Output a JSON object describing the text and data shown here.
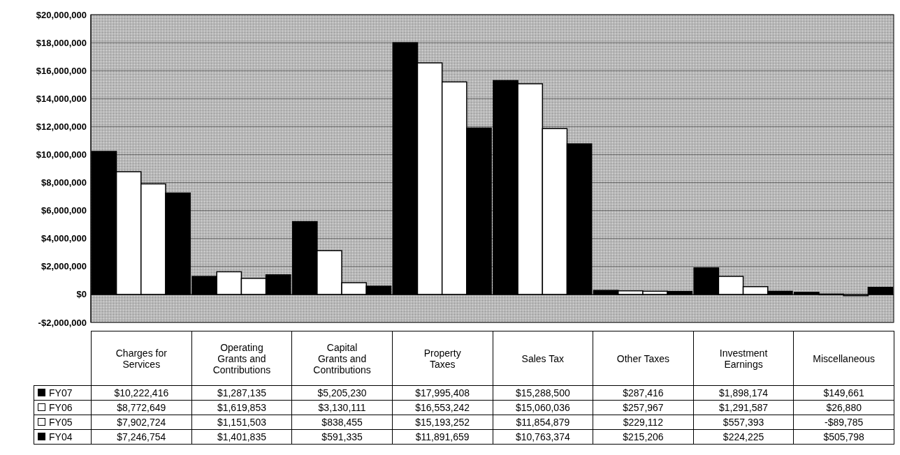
{
  "chart_data": {
    "type": "bar",
    "categories": [
      "Charges for Services",
      "Operating Grants and Contributions",
      "Capital Grants and Contributions",
      "Property Taxes",
      "Sales Tax",
      "Other Taxes",
      "Investment Earnings",
      "Miscellaneous"
    ],
    "series": [
      {
        "name": "FY07",
        "color": "#000000",
        "values": [
          10222416,
          1287135,
          5205230,
          17995408,
          15288500,
          287416,
          1898174,
          149661
        ],
        "value_labels": [
          "$10,222,416",
          "$1,287,135",
          "$5,205,230",
          "$17,995,408",
          "$15,288,500",
          "$287,416",
          "$1,898,174",
          "$149,661"
        ]
      },
      {
        "name": "FY06",
        "color": "#ffffff",
        "values": [
          8772649,
          1619853,
          3130111,
          16553242,
          15060036,
          257967,
          1291587,
          26880
        ],
        "value_labels": [
          "$8,772,649",
          "$1,619,853",
          "$3,130,111",
          "$16,553,242",
          "$15,060,036",
          "$257,967",
          "$1,291,587",
          "$26,880"
        ]
      },
      {
        "name": "FY05",
        "color": "#ffffff",
        "values": [
          7902724,
          1151503,
          838455,
          15193252,
          11854879,
          229112,
          557393,
          -89785
        ],
        "value_labels": [
          "$7,902,724",
          "$1,151,503",
          "$838,455",
          "$15,193,252",
          "$11,854,879",
          "$229,112",
          "$557,393",
          "-$89,785"
        ]
      },
      {
        "name": "FY04",
        "color": "#000000",
        "values": [
          7246754,
          1401835,
          591335,
          11891659,
          10763374,
          215206,
          224225,
          505798
        ],
        "value_labels": [
          "$7,246,754",
          "$1,401,835",
          "$591,335",
          "$11,891,659",
          "$10,763,374",
          "$215,206",
          "$224,225",
          "$505,798"
        ]
      }
    ],
    "ylim": [
      -2000000,
      20000000
    ],
    "yticks": [
      {
        "value": -2000000,
        "label": "-$2,000,000"
      },
      {
        "value": 0,
        "label": "$0"
      },
      {
        "value": 2000000,
        "label": "$2,000,000"
      },
      {
        "value": 4000000,
        "label": "$4,000,000"
      },
      {
        "value": 6000000,
        "label": "$6,000,000"
      },
      {
        "value": 8000000,
        "label": "$8,000,000"
      },
      {
        "value": 10000000,
        "label": "$10,000,000"
      },
      {
        "value": 12000000,
        "label": "$12,000,000"
      },
      {
        "value": 14000000,
        "label": "$14,000,000"
      },
      {
        "value": 16000000,
        "label": "$16,000,000"
      },
      {
        "value": 18000000,
        "label": "$18,000,000"
      },
      {
        "value": 20000000,
        "label": "$20,000,000"
      }
    ],
    "grid": "y",
    "legend": "bottom left"
  }
}
